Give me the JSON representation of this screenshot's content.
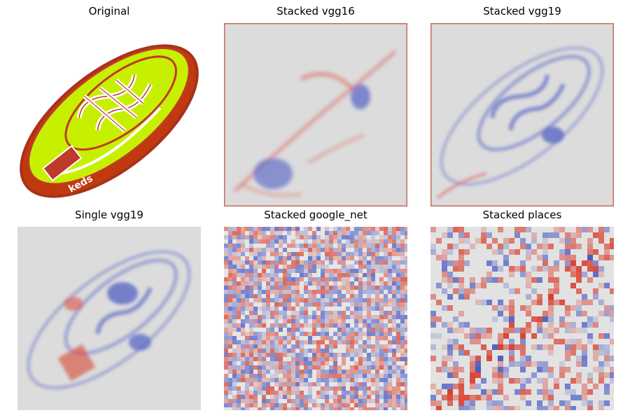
{
  "figure": {
    "panels": [
      {
        "title": "Original",
        "kind": "original",
        "image_text": "keds"
      },
      {
        "title": "Stacked vgg16",
        "kind": "saliency-smooth"
      },
      {
        "title": "Stacked vgg19",
        "kind": "saliency-smooth"
      },
      {
        "title": "Single vgg19",
        "kind": "saliency-smooth"
      },
      {
        "title": "Stacked google_net",
        "kind": "saliency-noisy"
      },
      {
        "title": "Stacked places",
        "kind": "saliency-blocky"
      }
    ],
    "colors": {
      "positive": "#d7301f",
      "negative": "#3b4cc0",
      "neutral": "#dcdcdc",
      "shoe_body": "#c6f000",
      "shoe_outline": "#c0392b",
      "sole": "#c0390f"
    }
  }
}
